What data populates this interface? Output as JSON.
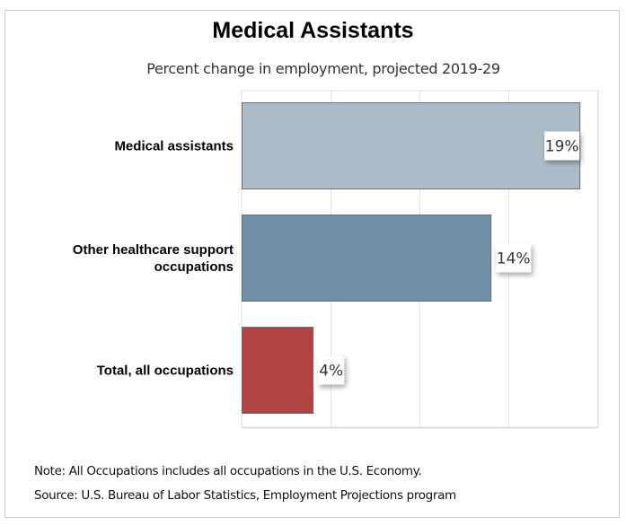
{
  "chart_data": {
    "type": "bar",
    "orientation": "horizontal",
    "title": "Medical Assistants",
    "subtitle": "Percent change in employment, projected 2019-29",
    "categories": [
      "Medical assistants",
      "Other healthcare support occupations",
      "Total, all occupations"
    ],
    "category_lines": [
      [
        "Medical assistants"
      ],
      [
        "Other healthcare support",
        "occupations"
      ],
      [
        "Total, all occupations"
      ]
    ],
    "values": [
      19,
      14,
      4
    ],
    "data_labels": [
      "19%",
      "14%",
      "4%"
    ],
    "colors": [
      "#abbcc8",
      "#728ea4",
      "#b14343"
    ],
    "xlabel": "",
    "ylabel": "",
    "xlim": [
      0,
      20
    ],
    "gridlines": [
      5,
      10,
      15,
      20
    ],
    "grid": true,
    "legend": "none"
  },
  "notes": {
    "note": "Note: All Occupations includes all occupations in the U.S. Economy.",
    "source": "Source: U.S. Bureau of Labor Statistics, Employment Projections program"
  }
}
